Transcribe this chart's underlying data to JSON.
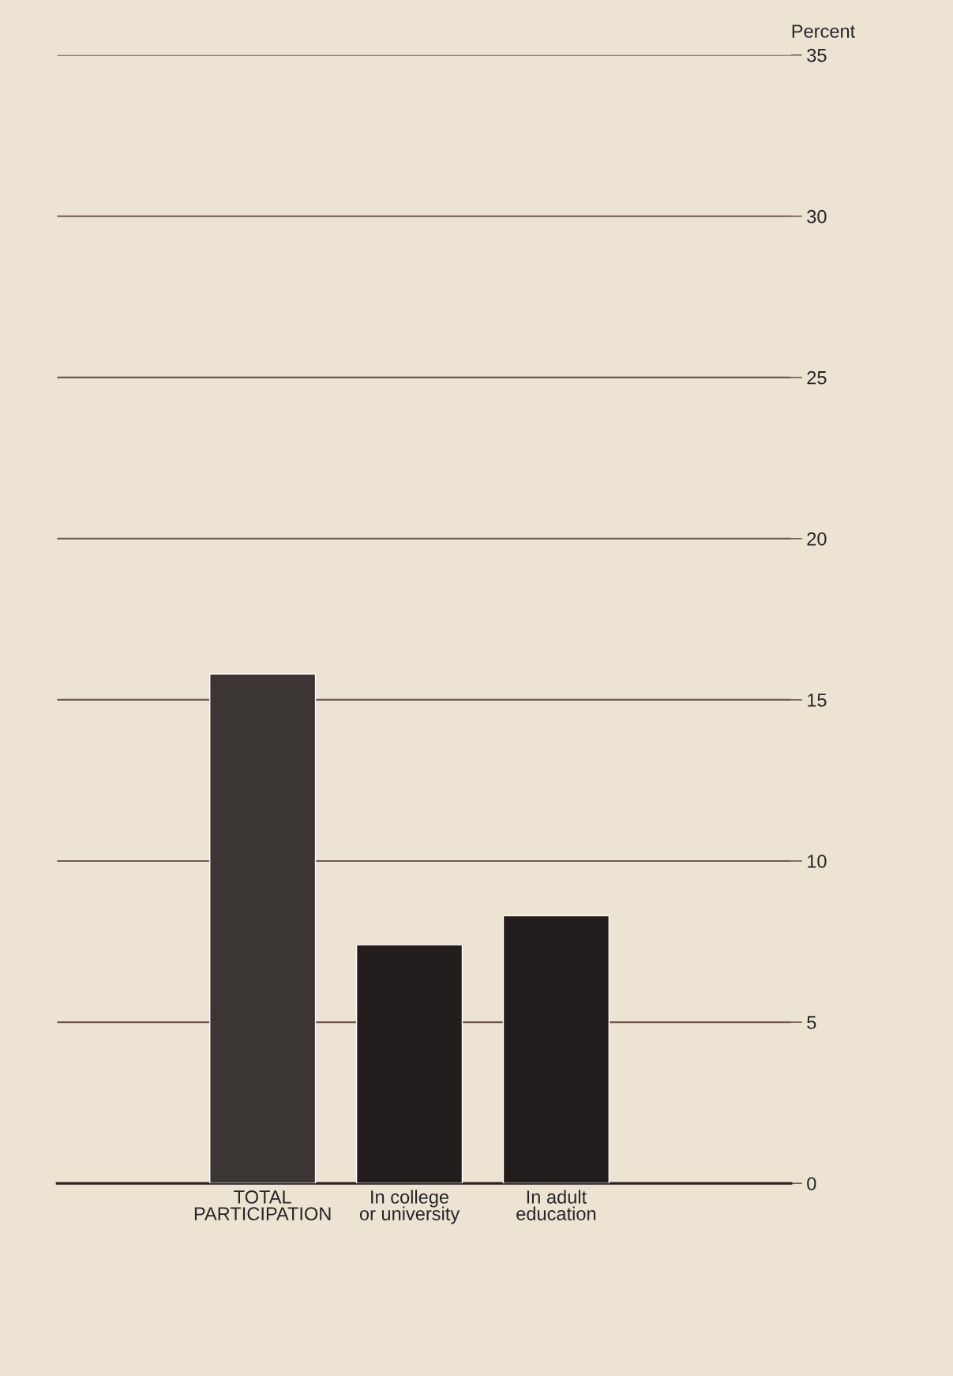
{
  "chart_data": {
    "type": "bar",
    "ylabel": "Percent",
    "categories": [
      "TOTAL\nPARTICIPATION",
      "In college\nor university",
      "In adult\neducation"
    ],
    "values": [
      15.8,
      7.4,
      8.3
    ],
    "colors": [
      "#3b3634",
      "#221d1c",
      "#221d1c"
    ],
    "ylim": [
      0,
      35
    ],
    "yticks": [
      0,
      5,
      10,
      15,
      20,
      25,
      30,
      35
    ],
    "grid": "y"
  }
}
